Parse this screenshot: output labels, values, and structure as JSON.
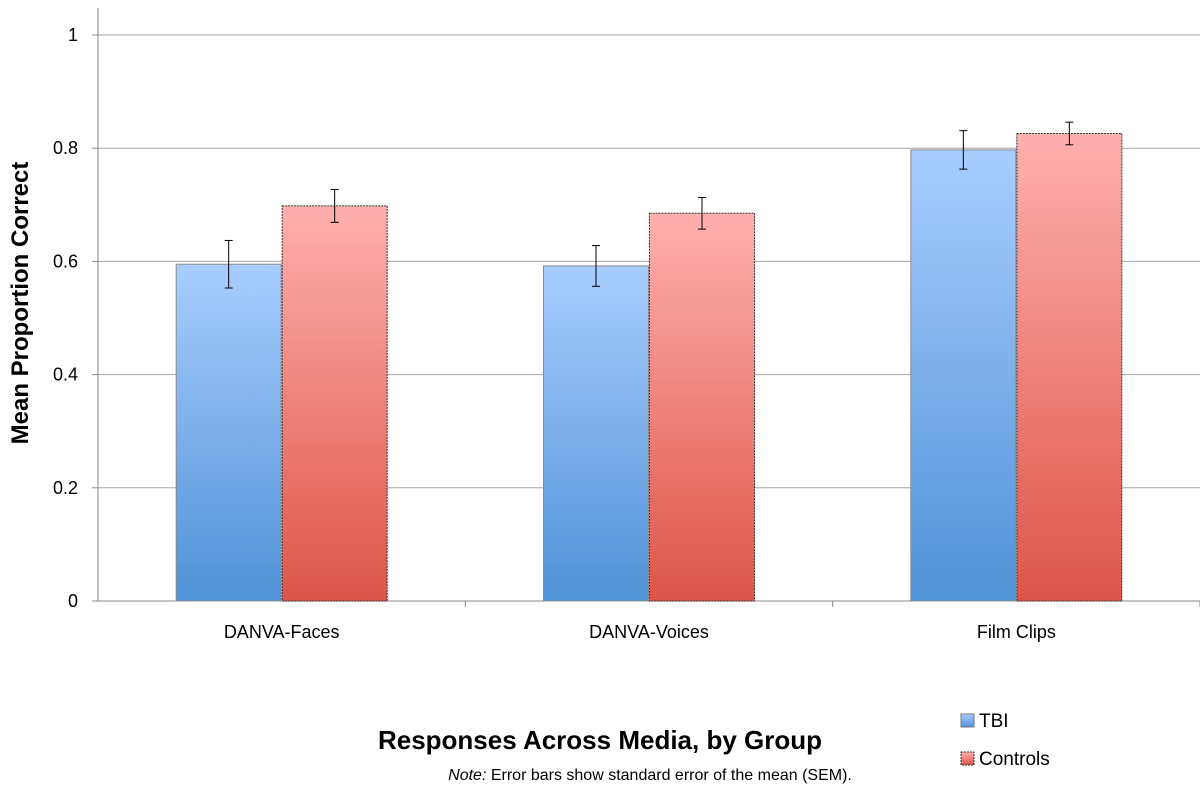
{
  "chart_data": {
    "type": "bar",
    "categories": [
      "DANVA-Faces",
      "DANVA-Voices",
      "Film Clips"
    ],
    "series": [
      {
        "name": "TBI",
        "values": [
          0.595,
          0.592,
          0.797
        ],
        "sem": [
          0.042,
          0.036,
          0.034
        ],
        "color": "#5b9bd5"
      },
      {
        "name": "Controls",
        "values": [
          0.698,
          0.685,
          0.826
        ],
        "sem": [
          0.029,
          0.028,
          0.02
        ],
        "color": "#e06660"
      }
    ],
    "ylim": [
      0,
      1
    ],
    "yticks": [
      0,
      0.2,
      0.4,
      0.6,
      0.8,
      1
    ],
    "ytick_labels": [
      "0",
      "0.2",
      "0.4",
      "0.6",
      "0.8",
      "1"
    ],
    "ylabel": "Mean Proportion Correct",
    "xlabel": "Responses Across Media, by Group",
    "note_prefix": "Note:",
    "note_text": " Error bars show standard error of the mean (SEM).",
    "grid": true,
    "legend_position": "bottom-right"
  }
}
